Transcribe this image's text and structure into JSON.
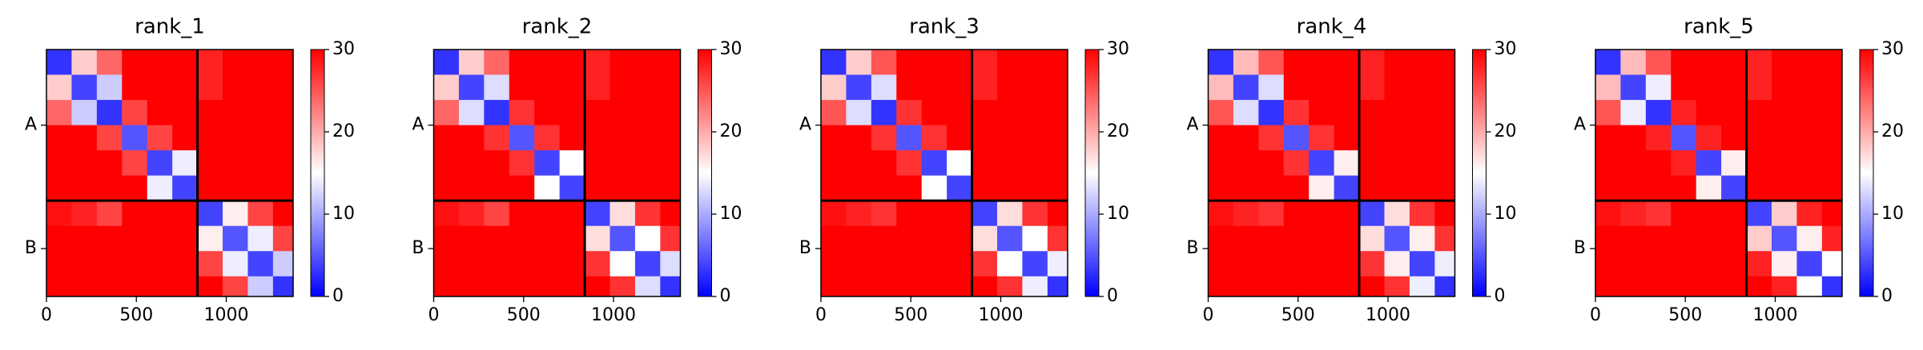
{
  "chart_data": [
    {
      "type": "heatmap",
      "title": "rank_1",
      "xlim": [
        0,
        1372
      ],
      "ylim": [
        1372,
        0
      ],
      "xticks": [
        0,
        500,
        1000
      ],
      "yticks": [
        {
          "value": 420,
          "label": "A"
        },
        {
          "value": 1106,
          "label": "B"
        }
      ],
      "bins": [
        0,
        140,
        280,
        420,
        560,
        700,
        840,
        980,
        1120,
        1260,
        1372
      ],
      "chain_breaks": [
        840
      ],
      "clim": [
        0,
        30
      ],
      "colorbar_ticks": [
        0,
        10,
        20,
        30
      ],
      "matrix": [
        [
          3,
          18,
          24,
          30,
          30,
          30,
          28,
          30,
          30,
          30
        ],
        [
          18,
          4,
          12,
          30,
          30,
          30,
          28,
          30,
          30,
          30
        ],
        [
          24,
          12,
          3,
          26,
          30,
          30,
          30,
          30,
          30,
          30
        ],
        [
          30,
          30,
          26,
          5,
          26,
          30,
          30,
          30,
          30,
          30
        ],
        [
          30,
          30,
          30,
          26,
          4,
          14,
          30,
          30,
          30,
          30
        ],
        [
          30,
          30,
          30,
          30,
          14,
          4,
          30,
          30,
          30,
          30
        ],
        [
          29,
          28,
          26,
          30,
          30,
          30,
          4,
          16,
          26,
          30
        ],
        [
          30,
          30,
          30,
          30,
          30,
          30,
          16,
          5,
          14,
          26
        ],
        [
          30,
          30,
          30,
          30,
          30,
          30,
          26,
          14,
          4,
          12
        ],
        [
          30,
          30,
          30,
          30,
          30,
          30,
          30,
          26,
          12,
          3
        ]
      ]
    },
    {
      "type": "heatmap",
      "title": "rank_2",
      "xlim": [
        0,
        1372
      ],
      "ylim": [
        1372,
        0
      ],
      "xticks": [
        0,
        500,
        1000
      ],
      "yticks": [
        {
          "value": 420,
          "label": "A"
        },
        {
          "value": 1106,
          "label": "B"
        }
      ],
      "bins": [
        0,
        140,
        280,
        420,
        560,
        700,
        840,
        980,
        1120,
        1260,
        1372
      ],
      "chain_breaks": [
        840
      ],
      "clim": [
        0,
        30
      ],
      "colorbar_ticks": [
        0,
        10,
        20,
        30
      ],
      "matrix": [
        [
          3,
          18,
          24,
          30,
          30,
          30,
          28,
          30,
          30,
          30
        ],
        [
          18,
          4,
          13,
          30,
          30,
          30,
          28,
          30,
          30,
          30
        ],
        [
          24,
          13,
          3,
          27,
          30,
          30,
          30,
          30,
          30,
          30
        ],
        [
          30,
          30,
          27,
          5,
          27,
          30,
          30,
          30,
          30,
          30
        ],
        [
          30,
          30,
          30,
          27,
          4,
          15,
          30,
          30,
          30,
          30
        ],
        [
          30,
          30,
          30,
          30,
          15,
          4,
          30,
          30,
          30,
          30
        ],
        [
          29,
          28,
          26,
          30,
          30,
          30,
          4,
          17,
          27,
          30
        ],
        [
          30,
          30,
          30,
          30,
          30,
          30,
          17,
          5,
          15,
          27
        ],
        [
          30,
          30,
          30,
          30,
          30,
          30,
          27,
          15,
          4,
          13
        ],
        [
          30,
          30,
          30,
          30,
          30,
          30,
          30,
          27,
          13,
          3
        ]
      ]
    },
    {
      "type": "heatmap",
      "title": "rank_3",
      "xlim": [
        0,
        1372
      ],
      "ylim": [
        1372,
        0
      ],
      "xticks": [
        0,
        500,
        1000
      ],
      "yticks": [
        {
          "value": 420,
          "label": "A"
        },
        {
          "value": 1106,
          "label": "B"
        }
      ],
      "bins": [
        0,
        140,
        280,
        420,
        560,
        700,
        840,
        980,
        1120,
        1260,
        1372
      ],
      "chain_breaks": [
        840
      ],
      "clim": [
        0,
        30
      ],
      "colorbar_ticks": [
        0,
        10,
        20,
        30
      ],
      "matrix": [
        [
          3,
          18,
          25,
          30,
          30,
          30,
          28,
          30,
          30,
          30
        ],
        [
          18,
          4,
          13,
          30,
          30,
          30,
          28,
          30,
          30,
          30
        ],
        [
          25,
          13,
          3,
          27,
          30,
          30,
          30,
          30,
          30,
          30
        ],
        [
          30,
          30,
          27,
          5,
          27,
          30,
          30,
          30,
          30,
          30
        ],
        [
          30,
          30,
          30,
          27,
          4,
          15,
          30,
          30,
          30,
          30
        ],
        [
          30,
          30,
          30,
          30,
          15,
          4,
          30,
          30,
          30,
          30
        ],
        [
          29,
          28,
          27,
          30,
          30,
          30,
          4,
          17,
          27,
          30
        ],
        [
          30,
          30,
          30,
          30,
          30,
          30,
          17,
          5,
          15,
          27
        ],
        [
          30,
          30,
          30,
          30,
          30,
          30,
          27,
          15,
          4,
          14
        ],
        [
          30,
          30,
          30,
          30,
          30,
          30,
          30,
          27,
          14,
          3
        ]
      ]
    },
    {
      "type": "heatmap",
      "title": "rank_4",
      "xlim": [
        0,
        1372
      ],
      "ylim": [
        1372,
        0
      ],
      "xticks": [
        0,
        500,
        1000
      ],
      "yticks": [
        {
          "value": 420,
          "label": "A"
        },
        {
          "value": 1106,
          "label": "B"
        }
      ],
      "bins": [
        0,
        140,
        280,
        420,
        560,
        700,
        840,
        980,
        1120,
        1260,
        1372
      ],
      "chain_breaks": [
        840
      ],
      "clim": [
        0,
        30
      ],
      "colorbar_ticks": [
        0,
        10,
        20,
        30
      ],
      "matrix": [
        [
          3,
          19,
          25,
          30,
          30,
          30,
          28,
          30,
          30,
          30
        ],
        [
          19,
          4,
          13,
          30,
          30,
          30,
          28,
          30,
          30,
          30
        ],
        [
          25,
          13,
          3,
          27,
          30,
          30,
          30,
          30,
          30,
          30
        ],
        [
          30,
          30,
          27,
          5,
          27,
          30,
          30,
          30,
          30,
          30
        ],
        [
          30,
          30,
          30,
          27,
          4,
          16,
          30,
          30,
          30,
          30
        ],
        [
          30,
          30,
          30,
          30,
          16,
          4,
          30,
          30,
          30,
          30
        ],
        [
          29,
          28,
          27,
          30,
          30,
          30,
          4,
          17,
          27,
          30
        ],
        [
          30,
          30,
          30,
          30,
          30,
          30,
          17,
          5,
          16,
          27
        ],
        [
          30,
          30,
          30,
          30,
          30,
          30,
          27,
          16,
          4,
          14
        ],
        [
          30,
          30,
          30,
          30,
          30,
          30,
          30,
          27,
          14,
          3
        ]
      ]
    },
    {
      "type": "heatmap",
      "title": "rank_5",
      "xlim": [
        0,
        1372
      ],
      "ylim": [
        1372,
        0
      ],
      "xticks": [
        0,
        500,
        1000
      ],
      "yticks": [
        {
          "value": 420,
          "label": "A"
        },
        {
          "value": 1106,
          "label": "B"
        }
      ],
      "bins": [
        0,
        140,
        280,
        420,
        560,
        700,
        840,
        980,
        1120,
        1260,
        1372
      ],
      "chain_breaks": [
        840
      ],
      "clim": [
        0,
        30
      ],
      "colorbar_ticks": [
        0,
        10,
        20,
        30
      ],
      "matrix": [
        [
          3,
          19,
          25,
          30,
          30,
          30,
          28,
          30,
          30,
          30
        ],
        [
          19,
          4,
          14,
          30,
          30,
          30,
          28,
          30,
          30,
          30
        ],
        [
          25,
          14,
          3,
          28,
          30,
          30,
          30,
          30,
          30,
          30
        ],
        [
          30,
          30,
          28,
          5,
          28,
          30,
          30,
          30,
          30,
          30
        ],
        [
          30,
          30,
          30,
          28,
          4,
          16,
          30,
          30,
          30,
          30
        ],
        [
          30,
          30,
          30,
          30,
          16,
          4,
          30,
          30,
          30,
          30
        ],
        [
          29,
          28,
          27,
          30,
          30,
          30,
          4,
          18,
          28,
          30
        ],
        [
          30,
          30,
          30,
          30,
          30,
          30,
          18,
          5,
          16,
          28
        ],
        [
          30,
          30,
          30,
          30,
          30,
          30,
          28,
          16,
          4,
          15
        ],
        [
          30,
          30,
          30,
          30,
          30,
          30,
          30,
          28,
          15,
          3
        ]
      ]
    }
  ]
}
